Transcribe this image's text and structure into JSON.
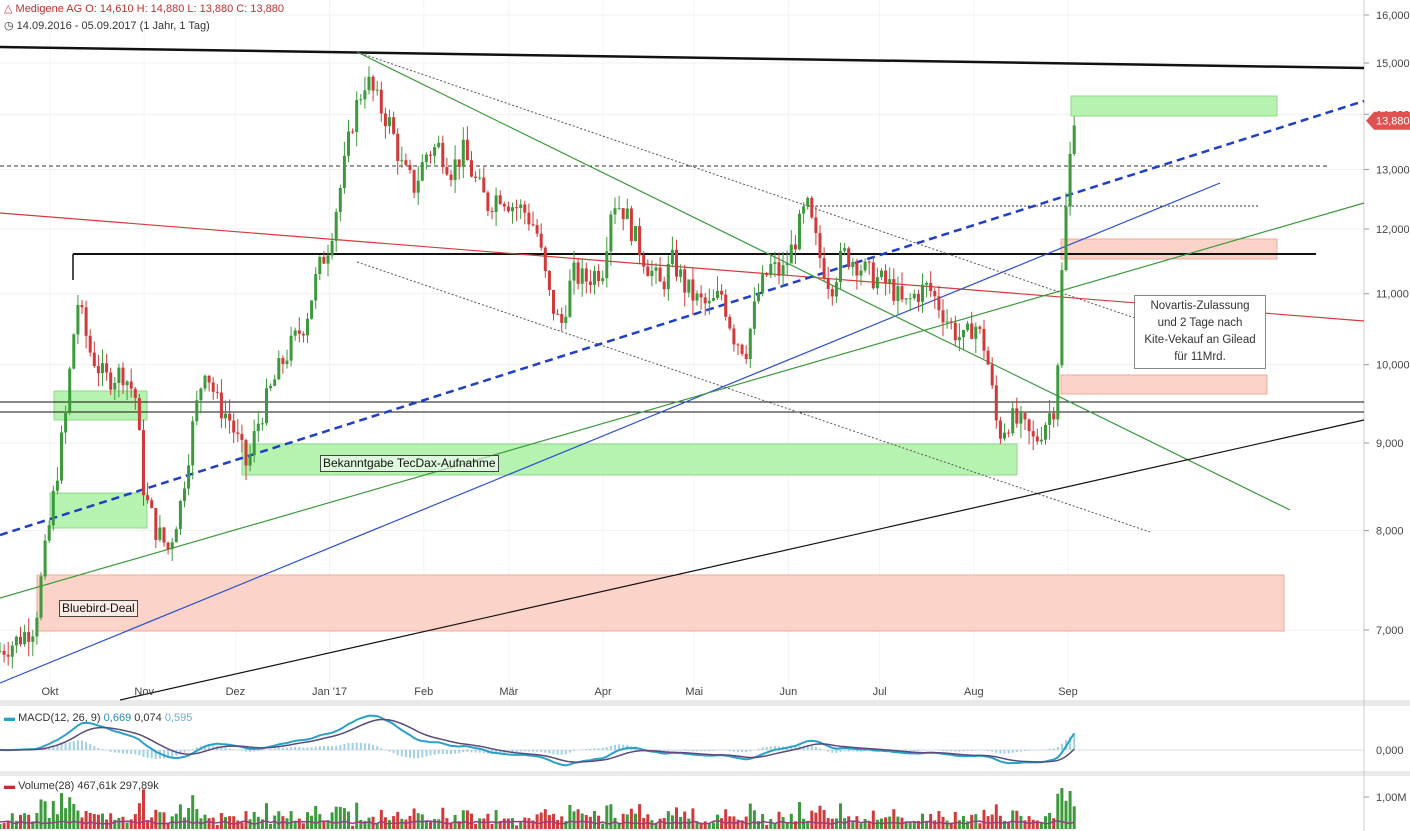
{
  "header": {
    "symbol": "Medigene AG",
    "ohlc": "O: 14,610  H: 14,880  L: 13,880  C: 13,880",
    "range": "14.09.2016 - 05.09.2017",
    "interval": "(1 Jahr, 1 Tag)"
  },
  "annotations": {
    "bluebird": "Bluebird-Deal",
    "tecdax": "Bekanntgabe TecDax-Aufnahme",
    "novartis_lines": [
      "Novartis-Zulassung",
      "und 2 Tage nach",
      "Kite-Vekauf an Gilead",
      "für 11Mrd."
    ]
  },
  "indicators": {
    "macd": {
      "name": "MACD(12, 26, 9)",
      "v1": "0,669",
      "v2": "0,074",
      "v3": "0,595",
      "axis_label": "0,000"
    },
    "volume": {
      "name": "Volume(28)",
      "v1": "467,61k",
      "v2": "297,89k",
      "axis_label": "1,00M"
    }
  },
  "colors": {
    "up": "#3c9a3c",
    "down": "#d03a3a",
    "last_price_tag": "#e05252",
    "macd_line": "#2aa1c9",
    "signal_line": "#5a4a7a",
    "volume_avg": "#9a3a8a",
    "green_zone": "#b6f2b0",
    "red_zone": "#fcd3c8"
  },
  "chart_data": {
    "type": "candlestick",
    "y_axis_ticks": [
      "16,000",
      "15,000",
      "14,000",
      "13,000",
      "12,000",
      "11,000",
      "10,000",
      "9,000",
      "8,000",
      "7,000"
    ],
    "y_tick_values": [
      16,
      15,
      14,
      13,
      12,
      11,
      10,
      9,
      8,
      7
    ],
    "last_price": 13.88,
    "last_price_label": "13,880",
    "x_axis_labels": [
      "Okt",
      "Nov",
      "Dez",
      "Jan '17",
      "Feb",
      "Mär",
      "Apr",
      "Mai",
      "Jun",
      "Jul",
      "Aug",
      "Sep"
    ],
    "y_scale": "log",
    "price_path": [
      [
        "2016-09-14",
        6.8
      ],
      [
        "2016-09-20",
        6.9
      ],
      [
        "2016-09-26",
        7.05
      ],
      [
        "2016-10-01",
        8.1
      ],
      [
        "2016-10-06",
        9.3
      ],
      [
        "2016-10-10",
        10.9
      ],
      [
        "2016-10-14",
        10.2
      ],
      [
        "2016-10-19",
        9.8
      ],
      [
        "2016-10-25",
        9.9
      ],
      [
        "2016-10-29",
        9.6
      ],
      [
        "2016-11-01",
        8.4
      ],
      [
        "2016-11-05",
        8.0
      ],
      [
        "2016-11-09",
        7.8
      ],
      [
        "2016-11-13",
        8.3
      ],
      [
        "2016-11-17",
        9.2
      ],
      [
        "2016-11-21",
        10.0
      ],
      [
        "2016-11-25",
        9.5
      ],
      [
        "2016-11-29",
        9.3
      ],
      [
        "2016-12-02",
        9.0
      ],
      [
        "2016-12-05",
        8.7
      ],
      [
        "2016-12-08",
        9.2
      ],
      [
        "2016-12-12",
        9.6
      ],
      [
        "2016-12-16",
        10.0
      ],
      [
        "2016-12-20",
        10.3
      ],
      [
        "2016-12-24",
        10.6
      ],
      [
        "2016-12-28",
        11.3
      ],
      [
        "2017-01-01",
        11.8
      ],
      [
        "2017-01-05",
        12.8
      ],
      [
        "2017-01-09",
        14.0
      ],
      [
        "2017-01-13",
        14.7
      ],
      [
        "2017-01-17",
        14.2
      ],
      [
        "2017-01-21",
        13.8
      ],
      [
        "2017-01-25",
        13.0
      ],
      [
        "2017-01-29",
        12.7
      ],
      [
        "2017-02-02",
        13.3
      ],
      [
        "2017-02-06",
        13.4
      ],
      [
        "2017-02-10",
        13.0
      ],
      [
        "2017-02-14",
        13.3
      ],
      [
        "2017-02-18",
        12.8
      ],
      [
        "2017-02-22",
        12.4
      ],
      [
        "2017-02-26",
        12.6
      ],
      [
        "2017-03-02",
        12.4
      ],
      [
        "2017-03-06",
        12.3
      ],
      [
        "2017-03-10",
        12.0
      ],
      [
        "2017-03-14",
        11.0
      ],
      [
        "2017-03-18",
        10.5
      ],
      [
        "2017-03-22",
        11.3
      ],
      [
        "2017-03-26",
        11.2
      ],
      [
        "2017-04-01",
        11.4
      ],
      [
        "2017-04-04",
        12.5
      ],
      [
        "2017-04-08",
        12.3
      ],
      [
        "2017-04-12",
        11.8
      ],
      [
        "2017-04-16",
        11.4
      ],
      [
        "2017-04-20",
        11.1
      ],
      [
        "2017-04-24",
        11.5
      ],
      [
        "2017-04-28",
        11.1
      ],
      [
        "2017-05-02",
        10.9
      ],
      [
        "2017-05-06",
        10.8
      ],
      [
        "2017-05-10",
        11.0
      ],
      [
        "2017-05-14",
        10.4
      ],
      [
        "2017-05-18",
        10.2
      ],
      [
        "2017-05-22",
        11.0
      ],
      [
        "2017-05-26",
        11.4
      ],
      [
        "2017-05-30",
        11.3
      ],
      [
        "2017-06-03",
        11.8
      ],
      [
        "2017-06-07",
        12.4
      ],
      [
        "2017-06-11",
        11.6
      ],
      [
        "2017-06-15",
        11.1
      ],
      [
        "2017-06-19",
        11.6
      ],
      [
        "2017-06-23",
        11.5
      ],
      [
        "2017-06-27",
        11.3
      ],
      [
        "2017-07-01",
        11.2
      ],
      [
        "2017-07-05",
        11.1
      ],
      [
        "2017-07-09",
        10.8
      ],
      [
        "2017-07-13",
        11.0
      ],
      [
        "2017-07-17",
        11.1
      ],
      [
        "2017-07-21",
        10.8
      ],
      [
        "2017-07-25",
        10.5
      ],
      [
        "2017-07-29",
        10.3
      ],
      [
        "2017-08-01",
        10.6
      ],
      [
        "2017-08-05",
        10.2
      ],
      [
        "2017-08-09",
        9.1
      ],
      [
        "2017-08-13",
        9.3
      ],
      [
        "2017-08-17",
        9.2
      ],
      [
        "2017-08-21",
        9.0
      ],
      [
        "2017-08-25",
        9.3
      ],
      [
        "2017-08-28",
        9.5
      ],
      [
        "2017-08-30",
        11.3
      ],
      [
        "2017-09-01",
        12.8
      ],
      [
        "2017-09-04",
        14.6
      ],
      [
        "2017-09-05",
        13.88
      ]
    ]
  }
}
